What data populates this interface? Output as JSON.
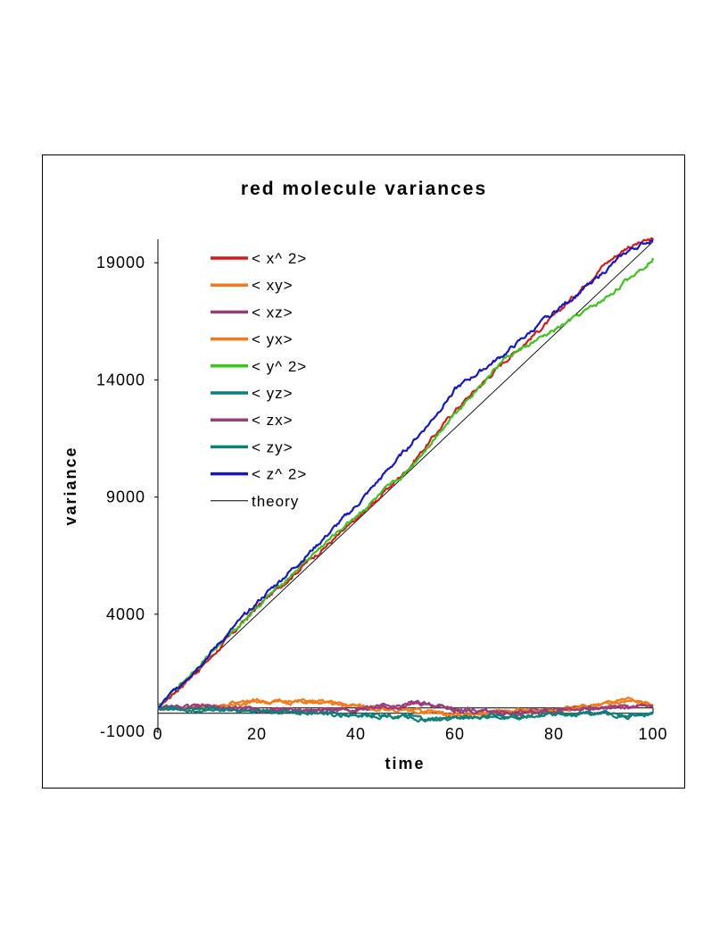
{
  "chart_data": {
    "type": "line",
    "title": "red molecule variances",
    "xlabel": "time",
    "ylabel": "variance",
    "xlim": [
      0,
      100
    ],
    "ylim": [
      -1000,
      20000
    ],
    "x_ticks": [
      0,
      20,
      40,
      60,
      80,
      100
    ],
    "x_tick_labels": [
      "0",
      "20",
      "40",
      "60",
      "80",
      "100"
    ],
    "y_ticks": [
      -1000,
      4000,
      9000,
      14000,
      19000
    ],
    "y_tick_labels": [
      "-1000",
      "4000",
      "9000",
      "14000",
      "19000"
    ],
    "grid": false,
    "legend_position": "upper-left inside",
    "series": [
      {
        "name": "< x^ 2>",
        "color": "#d41c1c",
        "x": [
          0,
          10,
          20,
          30,
          40,
          50,
          60,
          70,
          80,
          85,
          90,
          95,
          100
        ],
        "y": [
          0,
          2000,
          4300,
          6200,
          8000,
          10100,
          12700,
          14800,
          16700,
          17800,
          18900,
          19700,
          20000
        ]
      },
      {
        "name": "< xy>",
        "color": "#f47a18",
        "x": [
          0,
          10,
          20,
          25,
          30,
          40,
          50,
          55,
          60,
          70,
          80,
          90,
          95,
          100
        ],
        "y": [
          0,
          50,
          300,
          250,
          300,
          100,
          -150,
          -150,
          -300,
          -150,
          -100,
          150,
          300,
          150
        ]
      },
      {
        "name": "< xz>",
        "color": "#9a3d7a",
        "x": [
          0,
          10,
          20,
          30,
          40,
          50,
          52,
          55,
          60,
          70,
          80,
          90,
          100
        ],
        "y": [
          0,
          50,
          -50,
          -100,
          -50,
          100,
          250,
          150,
          -100,
          -200,
          -100,
          0,
          100
        ]
      },
      {
        "name": "< yx>",
        "color": "#f47a18",
        "x": [
          0,
          10,
          20,
          25,
          30,
          40,
          50,
          55,
          60,
          70,
          80,
          90,
          95,
          100
        ],
        "y": [
          0,
          50,
          300,
          250,
          300,
          100,
          -150,
          -150,
          -300,
          -150,
          -100,
          150,
          300,
          150
        ]
      },
      {
        "name": "< y^ 2>",
        "color": "#3cc31e",
        "x": [
          0,
          10,
          20,
          30,
          40,
          50,
          60,
          70,
          80,
          90,
          100
        ],
        "y": [
          0,
          2200,
          4300,
          6300,
          8200,
          10000,
          12600,
          14900,
          16100,
          17400,
          19200
        ]
      },
      {
        "name": "< yz>",
        "color": "#0e7f7a",
        "x": [
          0,
          10,
          20,
          30,
          40,
          50,
          55,
          60,
          70,
          80,
          90,
          95,
          100
        ],
        "y": [
          0,
          -50,
          -100,
          -200,
          -300,
          -350,
          -550,
          -400,
          -400,
          -250,
          -200,
          -400,
          -250
        ]
      },
      {
        "name": "< zx>",
        "color": "#9a3d7a",
        "x": [
          0,
          10,
          20,
          30,
          40,
          50,
          52,
          55,
          60,
          70,
          80,
          90,
          100
        ],
        "y": [
          0,
          50,
          -50,
          -100,
          -50,
          100,
          250,
          150,
          -100,
          -200,
          -100,
          0,
          100
        ]
      },
      {
        "name": "< zy>",
        "color": "#0e7f7a",
        "x": [
          0,
          10,
          20,
          30,
          40,
          50,
          55,
          60,
          70,
          80,
          90,
          95,
          100
        ],
        "y": [
          0,
          -50,
          -100,
          -200,
          -300,
          -350,
          -550,
          -400,
          -400,
          -250,
          -200,
          -400,
          -250
        ]
      },
      {
        "name": "< z^ 2>",
        "color": "#1717c4",
        "x": [
          0,
          10,
          20,
          30,
          40,
          50,
          55,
          60,
          70,
          80,
          85,
          90,
          95,
          100
        ],
        "y": [
          0,
          2200,
          4500,
          6500,
          8600,
          11000,
          12200,
          13600,
          15100,
          16900,
          17700,
          18600,
          19500,
          20000
        ]
      },
      {
        "name": "theory",
        "color": "#000000",
        "x": [
          0,
          100
        ],
        "y": [
          0,
          19900
        ]
      }
    ]
  }
}
